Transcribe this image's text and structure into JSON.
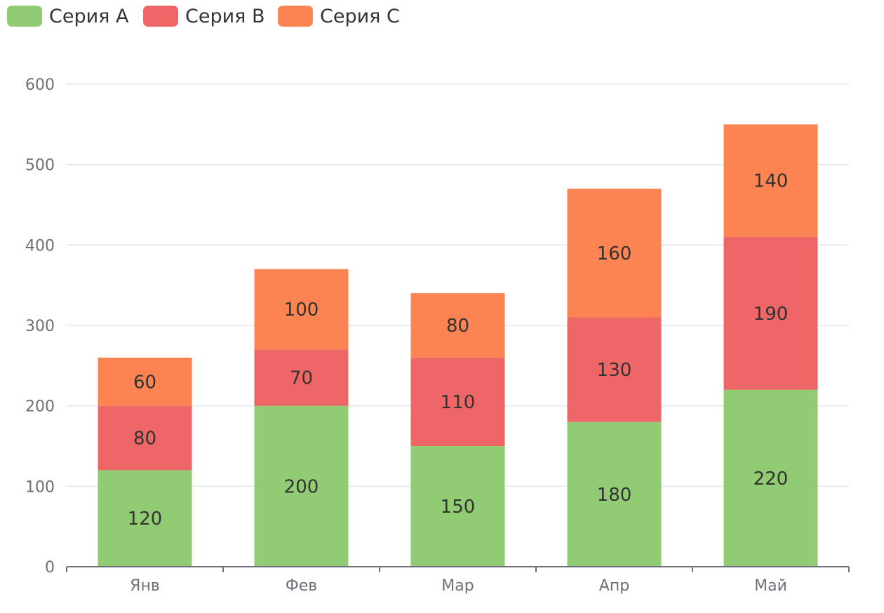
{
  "chart_data": {
    "type": "bar",
    "stacked": true,
    "categories": [
      "Янв",
      "Фев",
      "Мар",
      "Апр",
      "Май"
    ],
    "series": [
      {
        "name": "Серия A",
        "color": "#91cc75",
        "values": [
          120,
          200,
          150,
          180,
          220
        ]
      },
      {
        "name": "Серия B",
        "color": "#ee6666",
        "values": [
          80,
          70,
          110,
          130,
          190
        ]
      },
      {
        "name": "Серия C",
        "color": "#fc8452",
        "values": [
          60,
          100,
          80,
          160,
          140
        ]
      }
    ],
    "yticks": [
      0,
      100,
      200,
      300,
      400,
      500,
      600
    ],
    "ylim": [
      0,
      600
    ],
    "grid": true,
    "legend_position": "top-left",
    "data_labels": true,
    "colors": {
      "gridline": "#e0e6f1",
      "axis": "#6e7079",
      "label": "#333333"
    }
  }
}
